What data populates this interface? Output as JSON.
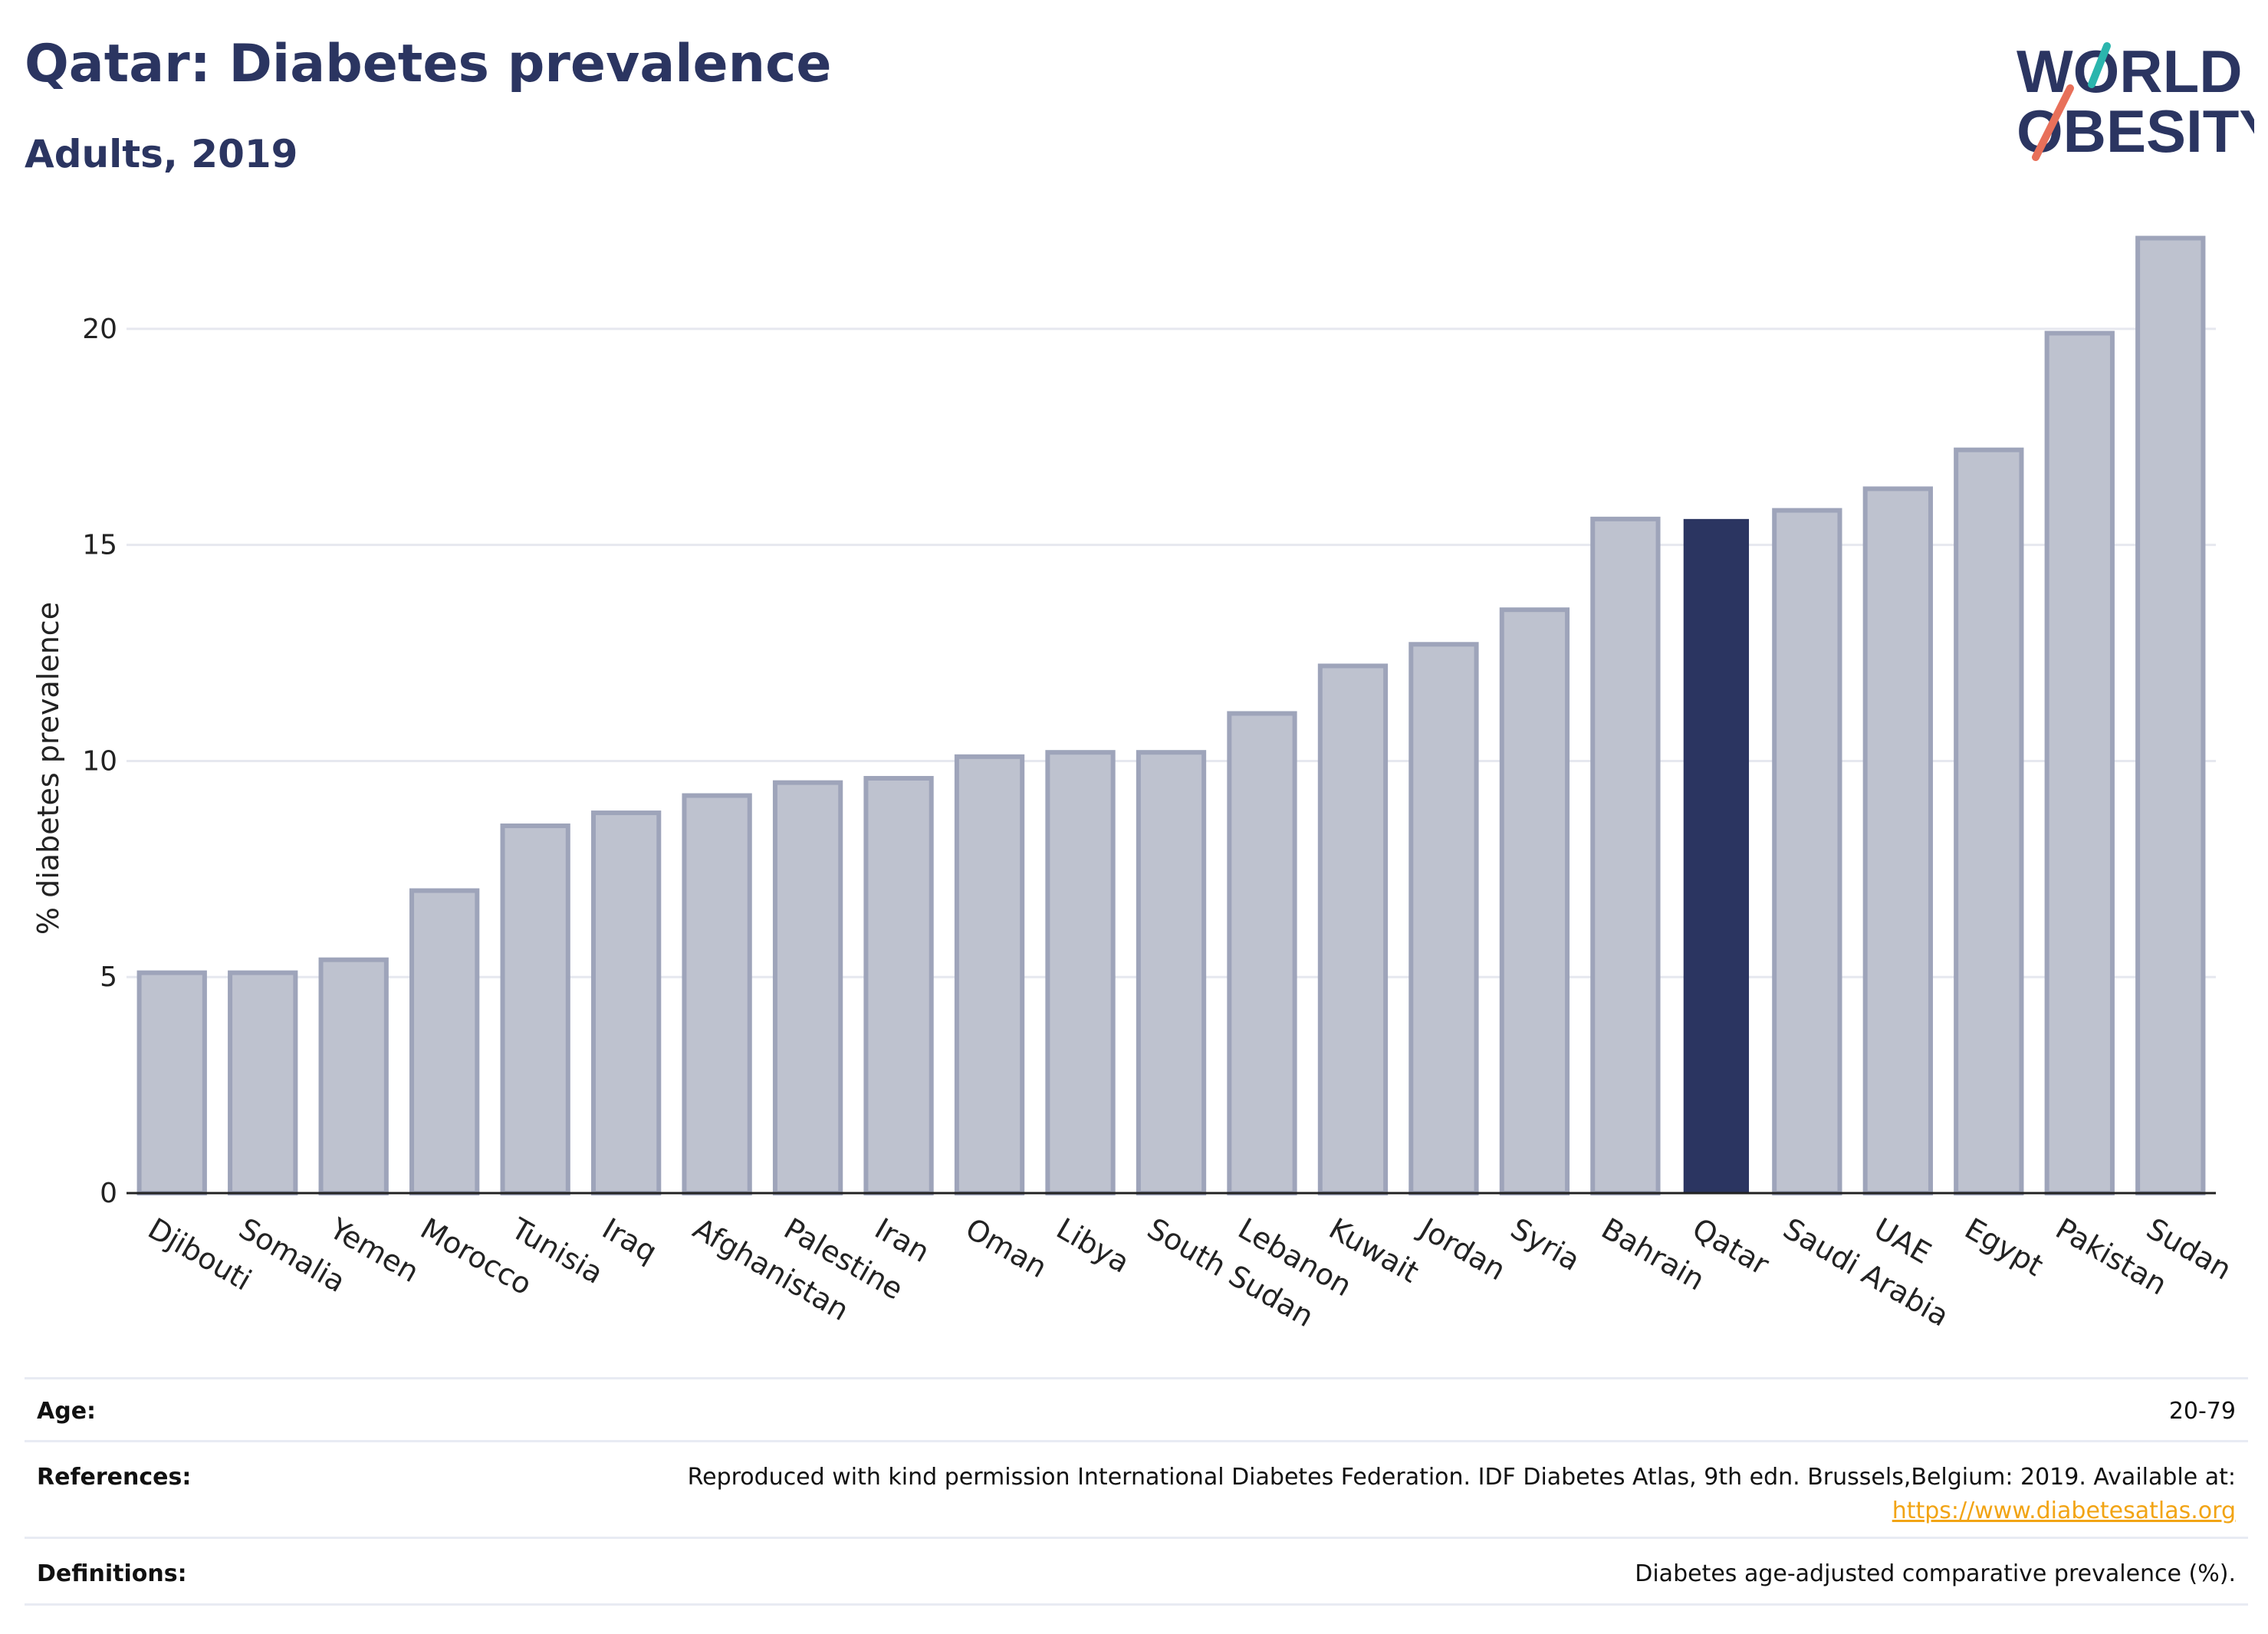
{
  "header": {
    "title": "Qatar: Diabetes prevalence",
    "subtitle": "Adults, 2019"
  },
  "logo": {
    "line1": "WORLD",
    "line2": "OBESITY"
  },
  "chart_data": {
    "type": "bar",
    "ylabel": "% diabetes prevalence",
    "ylim": [
      0,
      22.5
    ],
    "yticks": [
      0,
      5,
      10,
      15,
      20
    ],
    "grid": true,
    "highlight": "Qatar",
    "colors": {
      "bar": "#bec2cf",
      "bar_edge": "#9ea4ba",
      "highlight": "#2b3561",
      "grid": "#e6e8ef",
      "axis": "#222222"
    },
    "categories": [
      "Djibouti",
      "Somalia",
      "Yemen",
      "Morocco",
      "Tunisia",
      "Iraq",
      "Afghanistan",
      "Palestine",
      "Iran",
      "Oman",
      "Libya",
      "South Sudan",
      "Lebanon",
      "Kuwait",
      "Jordan",
      "Syria",
      "Bahrain",
      "Qatar",
      "Saudi Arabia",
      "UAE",
      "Egypt",
      "Pakistan",
      "Sudan"
    ],
    "values": [
      5.1,
      5.1,
      5.4,
      7.0,
      8.5,
      8.8,
      9.2,
      9.5,
      9.6,
      10.1,
      10.2,
      10.2,
      11.1,
      12.2,
      12.7,
      13.5,
      15.6,
      15.6,
      15.8,
      16.3,
      17.2,
      19.9,
      22.1
    ]
  },
  "info": {
    "age": {
      "label": "Age:",
      "value": "20-79"
    },
    "references": {
      "label": "References:",
      "value": "Reproduced with kind permission International Diabetes Federation. IDF Diabetes Atlas, 9th edn. Brussels,Belgium: 2019. Available at:",
      "link": "https://www.diabetesatlas.org"
    },
    "definitions": {
      "label": "Definitions:",
      "value": "Diabetes age-adjusted comparative prevalence (%)."
    }
  }
}
